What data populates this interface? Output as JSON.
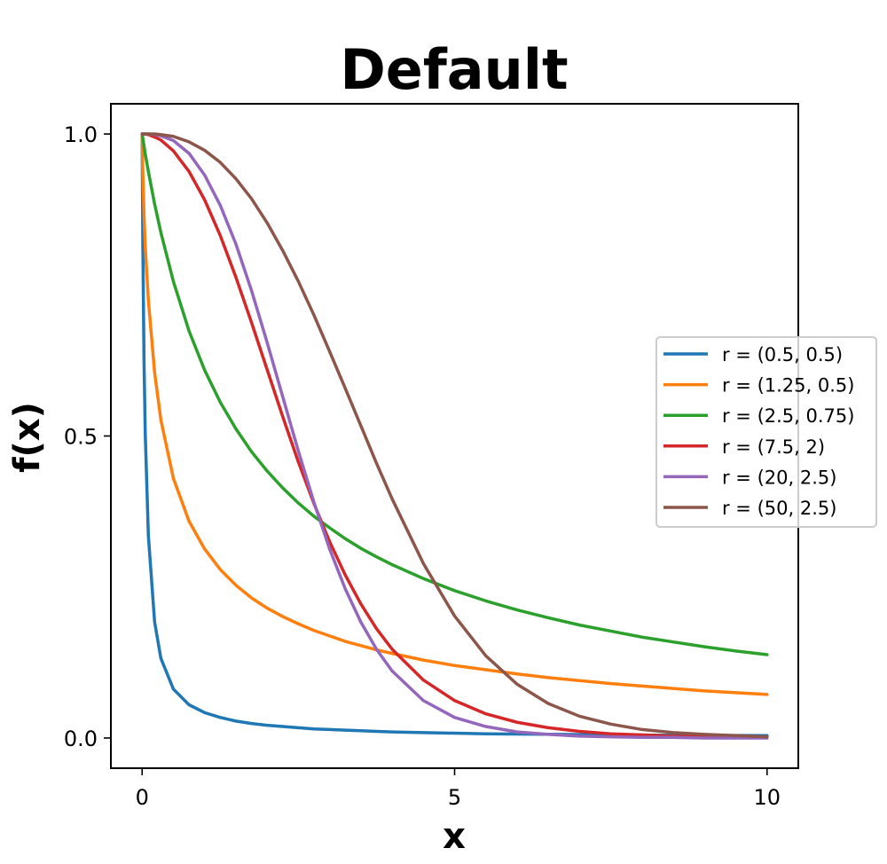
{
  "chart_data": {
    "type": "line",
    "title": "Default",
    "xlabel": "x",
    "ylabel": "f(x)",
    "xlim": [
      -0.5,
      10.5
    ],
    "ylim": [
      -0.05,
      1.05
    ],
    "xticks": [
      0,
      5,
      10
    ],
    "xtick_labels": [
      "0",
      "5",
      "10"
    ],
    "yticks": [
      0,
      0.5,
      1
    ],
    "ytick_labels": [
      "0.0",
      "0.5",
      "1.0"
    ],
    "grid": false,
    "legend_position": "center-right",
    "x": [
      0,
      0.01,
      0.03,
      0.05,
      0.1,
      0.2,
      0.3,
      0.5,
      0.75,
      1,
      1.25,
      1.5,
      1.75,
      2,
      2.25,
      2.5,
      2.75,
      3,
      3.25,
      3.5,
      3.75,
      4,
      4.5,
      5,
      5.5,
      6,
      6.5,
      7,
      7.5,
      8,
      8.5,
      9,
      9.5,
      10
    ],
    "series": [
      {
        "name": "r = (0.5, 0.5)",
        "color": "#1f77b4",
        "values": [
          1.0,
          0.834,
          0.627,
          0.504,
          0.335,
          0.192,
          0.132,
          0.081,
          0.055,
          0.042,
          0.034,
          0.028,
          0.024,
          0.021,
          0.019,
          0.017,
          0.015,
          0.014,
          0.013,
          0.012,
          0.011,
          0.01,
          0.009,
          0.008,
          0.007,
          0.0066,
          0.0061,
          0.0057,
          0.0053,
          0.0049,
          0.0046,
          0.0044,
          0.0041,
          0.0039
        ]
      },
      {
        "name": "r = (1.25, 0.5)",
        "color": "#ff7f0e",
        "values": [
          1.0,
          0.943,
          0.866,
          0.814,
          0.725,
          0.605,
          0.527,
          0.43,
          0.359,
          0.313,
          0.279,
          0.253,
          0.232,
          0.215,
          0.201,
          0.189,
          0.178,
          0.169,
          0.16,
          0.153,
          0.146,
          0.14,
          0.129,
          0.12,
          0.113,
          0.106,
          0.1,
          0.095,
          0.09,
          0.086,
          0.082,
          0.078,
          0.075,
          0.072
        ]
      },
      {
        "name": "r = (2.5, 0.75)",
        "color": "#2ca02c",
        "values": [
          1.0,
          0.994,
          0.98,
          0.967,
          0.938,
          0.884,
          0.837,
          0.756,
          0.674,
          0.609,
          0.556,
          0.512,
          0.474,
          0.442,
          0.414,
          0.389,
          0.367,
          0.348,
          0.33,
          0.314,
          0.3,
          0.287,
          0.264,
          0.244,
          0.227,
          0.212,
          0.199,
          0.187,
          0.177,
          0.167,
          0.159,
          0.151,
          0.144,
          0.138
        ]
      },
      {
        "name": "r = (7.5, 2)",
        "color": "#d62728",
        "values": [
          1.0,
          1.0,
          1.0,
          1.0,
          0.999,
          0.995,
          0.99,
          0.972,
          0.938,
          0.891,
          0.832,
          0.763,
          0.688,
          0.61,
          0.532,
          0.457,
          0.388,
          0.325,
          0.27,
          0.222,
          0.181,
          0.147,
          0.096,
          0.062,
          0.04,
          0.026,
          0.017,
          0.011,
          0.007,
          0.005,
          0.003,
          0.002,
          0.001,
          0.001
        ]
      },
      {
        "name": "r = (20, 2.5)",
        "color": "#9467bd",
        "values": [
          1.0,
          1.0,
          1.0,
          1.0,
          1.0,
          0.999,
          0.997,
          0.989,
          0.968,
          0.932,
          0.882,
          0.818,
          0.741,
          0.655,
          0.565,
          0.475,
          0.39,
          0.313,
          0.247,
          0.192,
          0.147,
          0.111,
          0.062,
          0.034,
          0.019,
          0.01,
          0.006,
          0.003,
          0.002,
          0.001,
          0.001,
          0.0,
          0.0,
          0.0
        ]
      },
      {
        "name": "r = (50, 2.5)",
        "color": "#8c564b",
        "values": [
          1.0,
          1.0,
          1.0,
          1.0,
          1.0,
          1.0,
          0.999,
          0.996,
          0.987,
          0.973,
          0.953,
          0.926,
          0.893,
          0.853,
          0.807,
          0.756,
          0.7,
          0.64,
          0.579,
          0.517,
          0.455,
          0.396,
          0.289,
          0.202,
          0.136,
          0.089,
          0.057,
          0.036,
          0.023,
          0.014,
          0.009,
          0.006,
          0.004,
          0.002
        ]
      }
    ]
  }
}
